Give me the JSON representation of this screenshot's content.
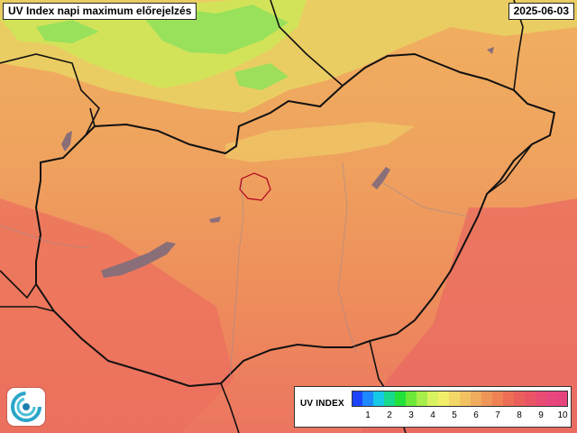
{
  "header": {
    "title": "UV Index napi maximum előrejelzés",
    "date": "2025-06-03"
  },
  "legend": {
    "title": "UV INDEX",
    "tick_labels": [
      "1",
      "2",
      "3",
      "4",
      "5",
      "6",
      "7",
      "8",
      "9",
      "10"
    ],
    "color_steps": [
      "#1d44ff",
      "#1e88ff",
      "#17c9e6",
      "#19d98c",
      "#22e23a",
      "#6be838",
      "#a7ee4a",
      "#d9f260",
      "#f1ee6a",
      "#f3d867",
      "#f2c262",
      "#efac5d",
      "#ee9658",
      "#ee8254",
      "#ec6e55",
      "#ea5f5c",
      "#ea5566",
      "#e94c72",
      "#e8477e",
      "#e6447f"
    ]
  },
  "map": {
    "background_color": "#ee8a5c",
    "border_color": "#111111",
    "lake_color": "#8a6f79"
  }
}
